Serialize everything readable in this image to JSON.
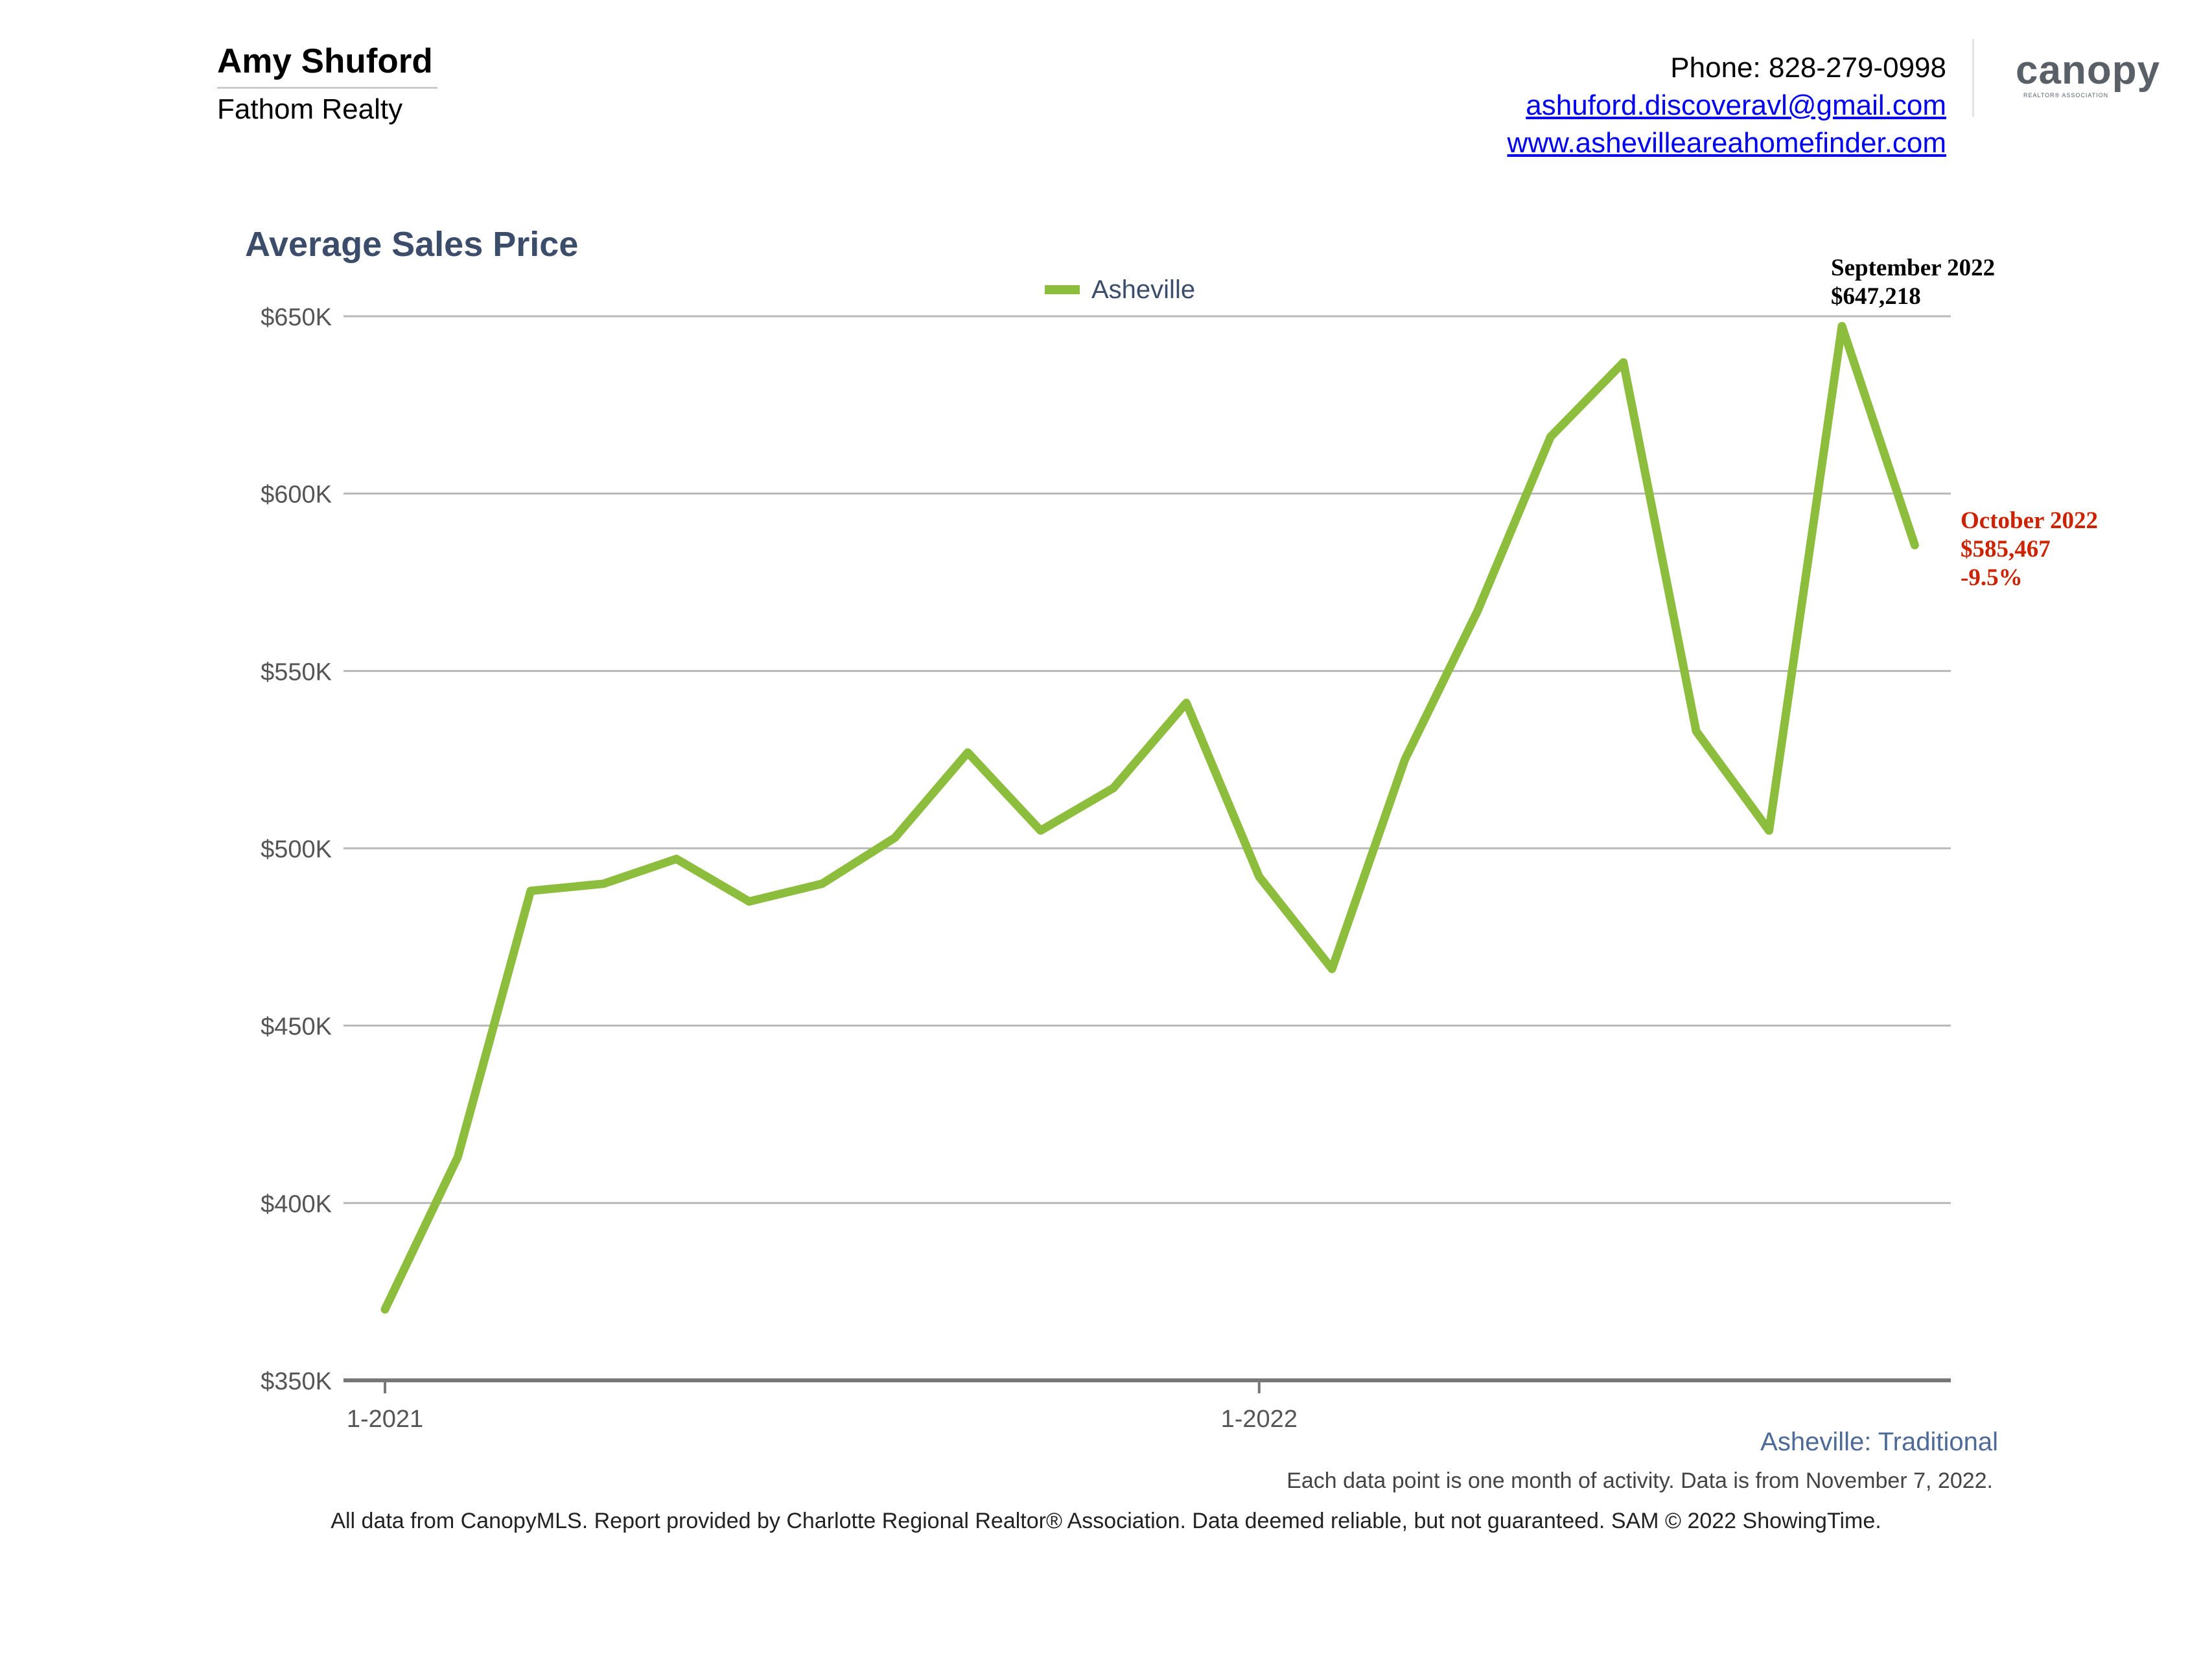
{
  "agent": {
    "name": "Amy Shuford",
    "company": "Fathom Realty"
  },
  "contact": {
    "phone": "Phone: 828-279-0998",
    "email": "ashuford.discoveravl@gmail.com",
    "website": "www.ashevilleareahomefinder.com"
  },
  "logo": {
    "text": "canopy",
    "subtext": "REALTOR® ASSOCIATION",
    "color": "#5a6068",
    "accent": "#8dbd3c"
  },
  "subtitle": "Asheville: Traditional",
  "note": "Each data point is one month of activity. Data is from November 7, 2022.",
  "footer": "All data from CanopyMLS. Report provided by Charlotte Regional Realtor® Association. Data deemed reliable, but not guaranteed. SAM © 2022 ShowingTime.",
  "chart_data": {
    "type": "line",
    "title": "Average Sales Price",
    "xlabel": "",
    "ylabel": "",
    "x": [
      "1-2021",
      "2-2021",
      "3-2021",
      "4-2021",
      "5-2021",
      "6-2021",
      "7-2021",
      "8-2021",
      "9-2021",
      "10-2021",
      "11-2021",
      "12-2021",
      "1-2022",
      "2-2022",
      "3-2022",
      "4-2022",
      "5-2022",
      "6-2022",
      "7-2022",
      "8-2022",
      "9-2022",
      "10-2022"
    ],
    "x_tick_labels": [
      "1-2021",
      "1-2022"
    ],
    "series": [
      {
        "name": "Asheville",
        "color": "#8dbd3c",
        "values": [
          370000,
          413000,
          488000,
          490000,
          497000,
          485000,
          490000,
          503000,
          527000,
          505000,
          517000,
          541000,
          492000,
          466000,
          525000,
          567000,
          616000,
          637000,
          533000,
          505000,
          647218,
          585467
        ]
      }
    ],
    "ylim": [
      350000,
      650000
    ],
    "y_ticks": [
      350000,
      400000,
      450000,
      500000,
      550000,
      600000,
      650000
    ],
    "y_tick_labels": [
      "$350K",
      "$400K",
      "$450K",
      "$500K",
      "$550K",
      "$600K",
      "$650K"
    ],
    "grid": true,
    "legend": "top-center",
    "annotations": [
      {
        "point_index": 20,
        "lines": [
          "September 2022",
          "$647,218"
        ],
        "color": "#000000"
      },
      {
        "point_index": 21,
        "lines": [
          "October 2022",
          "$585,467",
          "-9.5%"
        ],
        "color": "#cc2200"
      }
    ]
  }
}
